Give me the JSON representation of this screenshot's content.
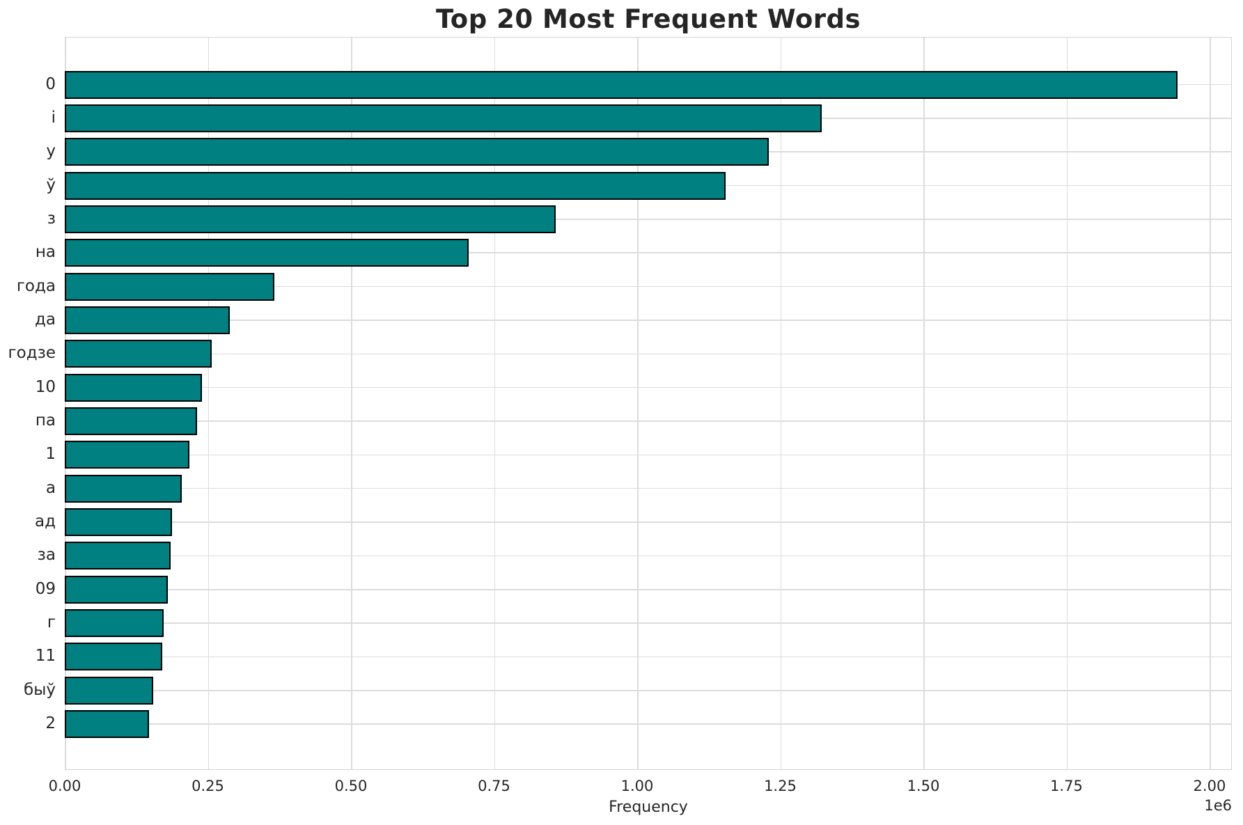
{
  "chart_data": {
    "type": "bar",
    "orientation": "horizontal",
    "title": "Top 20 Most Frequent Words",
    "xlabel": "Frequency",
    "ylabel": "",
    "categories": [
      "0",
      "і",
      "у",
      "ў",
      "з",
      "на",
      "года",
      "да",
      "годзе",
      "10",
      "па",
      "1",
      "а",
      "ад",
      "за",
      "09",
      "г",
      "11",
      "быў",
      "2"
    ],
    "values": [
      1943000,
      1321000,
      1229000,
      1153000,
      856000,
      704000,
      365000,
      287000,
      255000,
      239000,
      230000,
      216000,
      203000,
      186000,
      184000,
      179000,
      172000,
      169000,
      153000,
      146000
    ],
    "xlim": [
      0,
      2039000
    ],
    "xticks": [
      0,
      250000,
      500000,
      750000,
      1000000,
      1250000,
      1500000,
      1750000,
      2000000
    ],
    "xtick_labels": [
      "0.00",
      "0.25",
      "0.50",
      "0.75",
      "1.00",
      "1.25",
      "1.50",
      "1.75",
      "2.00"
    ],
    "offset_text": "1e6",
    "grid": true,
    "legend": false,
    "bar_color": "#008080",
    "bar_edge_color": "#000000",
    "grid_color": "#dcdcdc",
    "text_color": "#262626"
  }
}
